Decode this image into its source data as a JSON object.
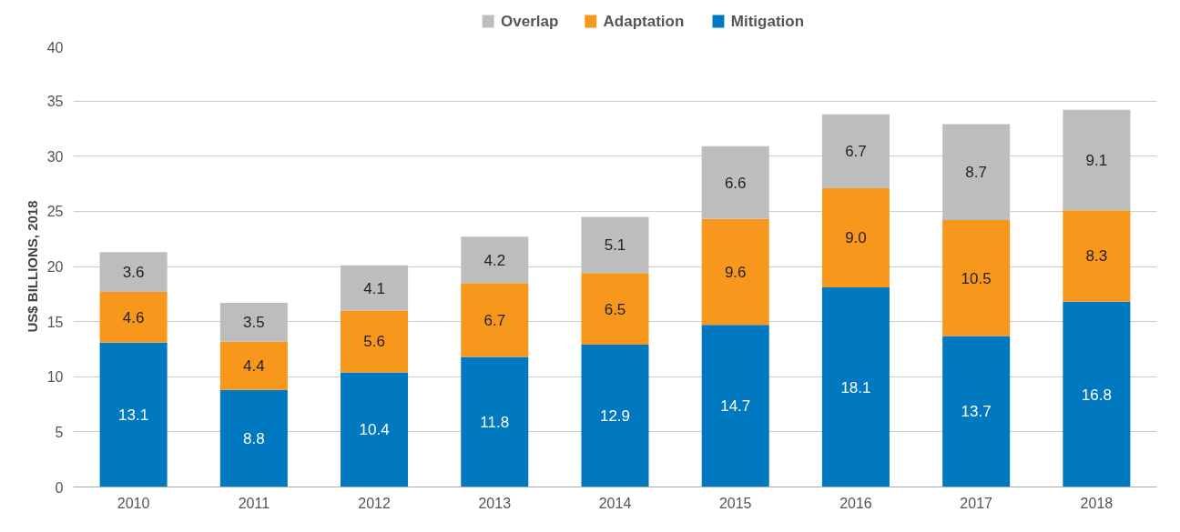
{
  "chart_data": {
    "type": "bar",
    "stacked": true,
    "ylabel": "US$ BILLIONS, 2018",
    "categories": [
      "2010",
      "2011",
      "2012",
      "2013",
      "2014",
      "2015",
      "2016",
      "2017",
      "2018"
    ],
    "series": [
      {
        "name": "Mitigation",
        "color": "#0079c1",
        "values": [
          13.1,
          8.8,
          10.4,
          11.8,
          12.9,
          14.7,
          18.1,
          13.7,
          16.8
        ],
        "value_labels": [
          "13.1",
          "8.8",
          "10.4",
          "11.8",
          "12.9",
          "14.7",
          "18.1",
          "13.7",
          "16.8"
        ]
      },
      {
        "name": "Adaptation",
        "color": "#f7981d",
        "values": [
          4.6,
          4.4,
          5.6,
          6.7,
          6.5,
          9.6,
          9.0,
          10.5,
          8.3
        ],
        "value_labels": [
          "4.6",
          "4.4",
          "5.6",
          "6.7",
          "6.5",
          "9.6",
          "9.0",
          "10.5",
          "8.3"
        ]
      },
      {
        "name": "Overlap",
        "color": "#bcbdbf",
        "values": [
          3.6,
          3.5,
          4.1,
          4.2,
          5.1,
          6.6,
          6.7,
          8.7,
          9.1
        ],
        "value_labels": [
          "3.6",
          "3.5",
          "4.1",
          "4.2",
          "5.1",
          "6.6",
          "6.7",
          "8.7",
          "9.1"
        ]
      }
    ],
    "ylim": [
      0,
      40
    ],
    "yticks": [
      0,
      5,
      10,
      15,
      20,
      25,
      30,
      35,
      40
    ],
    "grid": "y",
    "legend": "top",
    "data_labels": true
  }
}
